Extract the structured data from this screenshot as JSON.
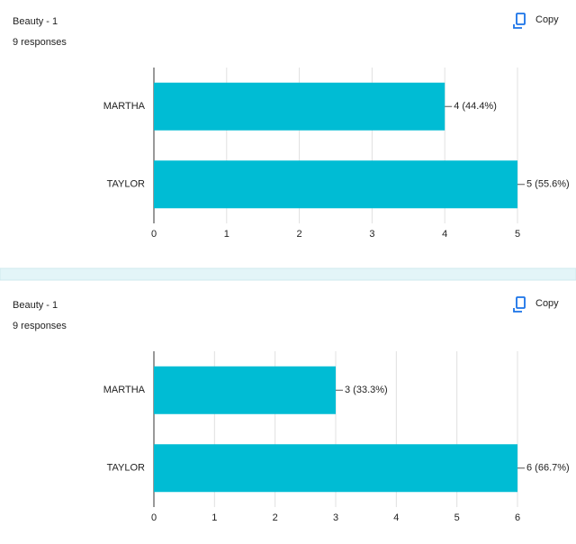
{
  "chart_data": [
    {
      "type": "hbar",
      "title": "Beauty - 1",
      "subtitle": "9 responses",
      "button": "Copy",
      "categories": [
        "MARTHA",
        "TAYLOR"
      ],
      "values": [
        4,
        5
      ],
      "value_labels": [
        "4 (44.4%)",
        "5 (55.6%)"
      ],
      "color": "#00bcd4",
      "xlim": [
        0,
        5
      ],
      "xticks": [
        0,
        1,
        2,
        3,
        4,
        5
      ],
      "grid": true
    },
    {
      "type": "hbar",
      "title": "Beauty - 1",
      "subtitle": "9 responses",
      "button": "Copy",
      "categories": [
        "MARTHA",
        "TAYLOR"
      ],
      "values": [
        3,
        6
      ],
      "value_labels": [
        "3 (33.3%)",
        "6 (66.7%)"
      ],
      "color": "#00bcd4",
      "xlim": [
        0,
        6
      ],
      "xticks": [
        0,
        1,
        2,
        3,
        4,
        5,
        6
      ],
      "grid": true
    }
  ]
}
